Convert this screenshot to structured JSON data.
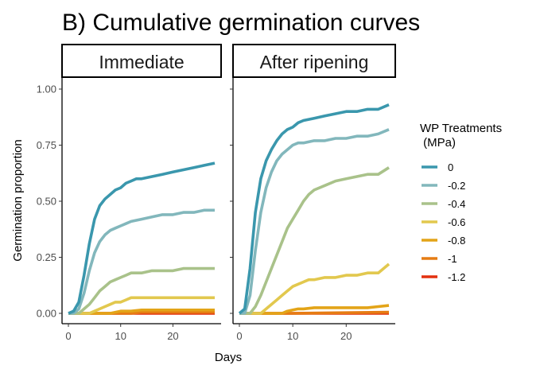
{
  "chart_data": {
    "type": "line",
    "title": "B) Cumulative germination curves",
    "xlabel": "Days",
    "ylabel": "Germination proportion",
    "xlim": [
      0,
      28
    ],
    "ylim": [
      0,
      1.0
    ],
    "x_ticks": [
      0,
      10,
      20
    ],
    "x_tick_labels": [
      "0",
      "10",
      "20"
    ],
    "y_ticks": [
      0,
      0.25,
      0.5,
      0.75,
      1.0
    ],
    "y_tick_labels": [
      "0.00",
      "0.25",
      "0.50",
      "0.75",
      "1.00"
    ],
    "grid": false,
    "legend": {
      "title_lines": [
        "WP Treatments",
        " (MPa)"
      ],
      "placement": "right"
    },
    "series_meta": [
      {
        "name": "0",
        "color": "#3a97ad"
      },
      {
        "name": "-0.2",
        "color": "#82b7bc"
      },
      {
        "name": "-0.4",
        "color": "#a9c28a"
      },
      {
        "name": "-0.6",
        "color": "#e2c84e"
      },
      {
        "name": "-0.8",
        "color": "#e3a418"
      },
      {
        "name": "-1",
        "color": "#e67c13"
      },
      {
        "name": "-1.2",
        "color": "#e3300f"
      }
    ],
    "panels": [
      {
        "label": "Immediate",
        "series": [
          {
            "name": "0",
            "x": [
              0,
              1,
              2,
              3,
              4,
              5,
              6,
              7,
              8,
              9,
              10,
              11,
              12,
              13,
              14,
              16,
              18,
              20,
              22,
              24,
              26,
              28
            ],
            "y": [
              0,
              0.01,
              0.05,
              0.17,
              0.31,
              0.42,
              0.48,
              0.51,
              0.53,
              0.55,
              0.56,
              0.58,
              0.59,
              0.6,
              0.6,
              0.61,
              0.62,
              0.63,
              0.64,
              0.65,
              0.66,
              0.67
            ]
          },
          {
            "name": "-0.2",
            "x": [
              0,
              1,
              2,
              3,
              4,
              5,
              6,
              7,
              8,
              9,
              10,
              11,
              12,
              14,
              16,
              18,
              20,
              22,
              24,
              26,
              28
            ],
            "y": [
              0,
              0,
              0.02,
              0.09,
              0.19,
              0.27,
              0.32,
              0.35,
              0.37,
              0.38,
              0.39,
              0.4,
              0.41,
              0.42,
              0.43,
              0.44,
              0.44,
              0.45,
              0.45,
              0.46,
              0.46
            ]
          },
          {
            "name": "-0.4",
            "x": [
              0,
              2,
              3,
              4,
              5,
              6,
              7,
              8,
              9,
              10,
              11,
              12,
              14,
              16,
              18,
              20,
              22,
              24,
              26,
              28
            ],
            "y": [
              0,
              0,
              0.02,
              0.04,
              0.07,
              0.1,
              0.12,
              0.14,
              0.15,
              0.16,
              0.17,
              0.18,
              0.18,
              0.19,
              0.19,
              0.19,
              0.2,
              0.2,
              0.2,
              0.2
            ]
          },
          {
            "name": "-0.6",
            "x": [
              0,
              4,
              5,
              6,
              7,
              8,
              9,
              10,
              11,
              12,
              14,
              16,
              18,
              20,
              22,
              24,
              26,
              28
            ],
            "y": [
              0,
              0,
              0.01,
              0.02,
              0.03,
              0.04,
              0.05,
              0.05,
              0.06,
              0.07,
              0.07,
              0.07,
              0.07,
              0.07,
              0.07,
              0.07,
              0.07,
              0.07
            ]
          },
          {
            "name": "-0.8",
            "x": [
              0,
              8,
              10,
              12,
              14,
              28
            ],
            "y": [
              0,
              0,
              0.01,
              0.01,
              0.015,
              0.015
            ]
          },
          {
            "name": "-1",
            "x": [
              0,
              12,
              14,
              28
            ],
            "y": [
              0,
              0,
              0.005,
              0.005
            ]
          },
          {
            "name": "-1.2",
            "x": [
              0,
              28
            ],
            "y": [
              0,
              0
            ]
          }
        ]
      },
      {
        "label": "After ripening",
        "series": [
          {
            "name": "0",
            "x": [
              0,
              1,
              2,
              3,
              4,
              5,
              6,
              7,
              8,
              9,
              10,
              11,
              12,
              14,
              16,
              18,
              20,
              22,
              24,
              26,
              28
            ],
            "y": [
              0,
              0.02,
              0.2,
              0.45,
              0.6,
              0.68,
              0.73,
              0.77,
              0.8,
              0.82,
              0.83,
              0.85,
              0.86,
              0.87,
              0.88,
              0.89,
              0.9,
              0.9,
              0.91,
              0.91,
              0.93
            ]
          },
          {
            "name": "-0.2",
            "x": [
              0,
              1,
              2,
              3,
              4,
              5,
              6,
              7,
              8,
              9,
              10,
              11,
              12,
              14,
              16,
              18,
              20,
              22,
              24,
              26,
              28
            ],
            "y": [
              0,
              0,
              0.08,
              0.28,
              0.45,
              0.56,
              0.63,
              0.68,
              0.71,
              0.73,
              0.75,
              0.76,
              0.76,
              0.77,
              0.77,
              0.78,
              0.78,
              0.79,
              0.79,
              0.8,
              0.82
            ]
          },
          {
            "name": "-0.4",
            "x": [
              0,
              2,
              3,
              4,
              5,
              6,
              7,
              8,
              9,
              10,
              11,
              12,
              13,
              14,
              16,
              18,
              20,
              22,
              24,
              26,
              28
            ],
            "y": [
              0,
              0,
              0.03,
              0.08,
              0.14,
              0.2,
              0.26,
              0.32,
              0.38,
              0.42,
              0.46,
              0.5,
              0.53,
              0.55,
              0.57,
              0.59,
              0.6,
              0.61,
              0.62,
              0.62,
              0.65
            ]
          },
          {
            "name": "-0.6",
            "x": [
              0,
              4,
              5,
              6,
              7,
              8,
              9,
              10,
              11,
              12,
              13,
              14,
              16,
              18,
              20,
              22,
              24,
              26,
              27,
              28
            ],
            "y": [
              0,
              0,
              0.02,
              0.04,
              0.06,
              0.08,
              0.1,
              0.12,
              0.13,
              0.14,
              0.15,
              0.15,
              0.16,
              0.16,
              0.17,
              0.17,
              0.18,
              0.18,
              0.2,
              0.22
            ]
          },
          {
            "name": "-0.8",
            "x": [
              0,
              8,
              9,
              10,
              11,
              12,
              14,
              16,
              18,
              20,
              22,
              24,
              26,
              28
            ],
            "y": [
              0,
              0,
              0.01,
              0.015,
              0.02,
              0.02,
              0.025,
              0.025,
              0.025,
              0.025,
              0.025,
              0.025,
              0.03,
              0.035
            ]
          },
          {
            "name": "-1",
            "x": [
              0,
              10,
              28
            ],
            "y": [
              0,
              0,
              0.005
            ]
          },
          {
            "name": "-1.2",
            "x": [
              0,
              28
            ],
            "y": [
              0,
              0
            ]
          }
        ]
      }
    ]
  }
}
